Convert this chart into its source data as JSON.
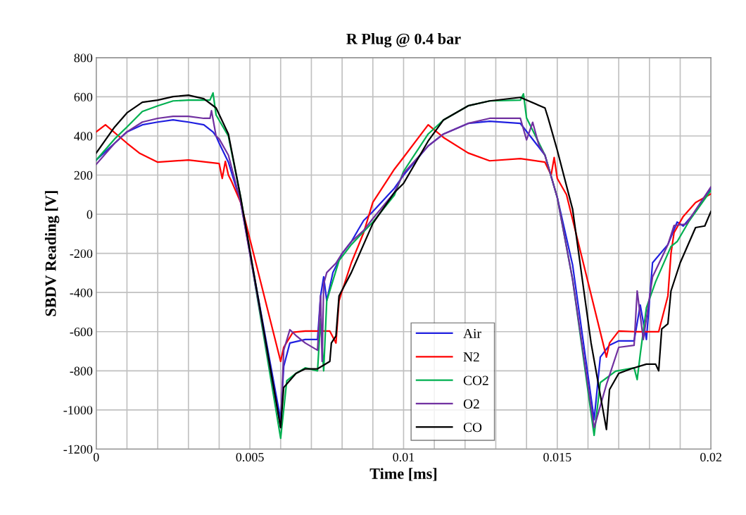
{
  "chart_data": {
    "type": "line",
    "title": "R Plug @ 0.4 bar",
    "xlabel": "Time [ms]",
    "ylabel": "SBDV Reading [V]",
    "xlim": [
      0,
      0.02
    ],
    "ylim": [
      -1200,
      800
    ],
    "xticks": [
      0,
      {
        "value": 0.001,
        "label": null
      },
      {
        "value": 0.002,
        "label": null
      },
      {
        "value": 0.003,
        "label": null
      },
      {
        "value": 0.004,
        "label": null
      },
      0.005,
      {
        "value": 0.006,
        "label": null
      },
      {
        "value": 0.007,
        "label": null
      },
      {
        "value": 0.008,
        "label": null
      },
      {
        "value": 0.009,
        "label": null
      },
      0.01,
      {
        "value": 0.011,
        "label": null
      },
      {
        "value": 0.012,
        "label": null
      },
      {
        "value": 0.013,
        "label": null
      },
      {
        "value": 0.014,
        "label": null
      },
      0.015,
      {
        "value": 0.016,
        "label": null
      },
      {
        "value": 0.017,
        "label": null
      },
      {
        "value": 0.018,
        "label": null
      },
      {
        "value": 0.019,
        "label": null
      },
      0.02
    ],
    "yticks": [
      -1200,
      -1000,
      -800,
      -600,
      -400,
      -200,
      0,
      200,
      400,
      600,
      800
    ],
    "grid": true,
    "legend": "bottom",
    "marker": "none",
    "line_style": "solid",
    "series": [
      {
        "name": "Air",
        "color": "#2020e0",
        "x": [
          0,
          0.0006,
          0.001,
          0.0015,
          0.002,
          0.0025,
          0.003,
          0.0035,
          0.0038,
          0.0039,
          0.004,
          0.0043,
          0.0047,
          0.006,
          0.0061,
          0.0063,
          0.0068,
          0.0072,
          0.0073,
          0.0074,
          0.0075,
          0.0077,
          0.008,
          0.0083,
          0.0087,
          0.009,
          0.0097,
          0.01,
          0.0108,
          0.0113,
          0.0121,
          0.0128,
          0.0138,
          0.0146,
          0.015,
          0.0155,
          0.0162,
          0.0164,
          0.0167,
          0.017,
          0.0175,
          0.0177,
          0.0179,
          0.0181,
          0.0186,
          0.0189,
          0.0191,
          0.0195,
          0.02
        ],
        "values": [
          277,
          363,
          421,
          457,
          471,
          482,
          471,
          457,
          420,
          399,
          363,
          266,
          61,
          -1050,
          -777,
          -658,
          -640,
          -640,
          -417,
          -320,
          -442,
          -298,
          -201,
          -140,
          -32,
          14,
          133,
          200,
          349,
          410,
          464,
          475,
          464,
          302,
          86,
          -260,
          -1050,
          -730,
          -669,
          -647,
          -647,
          -464,
          -640,
          -248,
          -155,
          -40,
          -60,
          14,
          133
        ]
      },
      {
        "name": "N2",
        "color": "#ff0000",
        "x": [
          0,
          0.0003,
          0.001,
          0.0014,
          0.002,
          0.003,
          0.004,
          0.0041,
          0.0042,
          0.0043,
          0.0044,
          0.0047,
          0.006,
          0.0061,
          0.0064,
          0.0068,
          0.0072,
          0.0076,
          0.0078,
          0.0079,
          0.008,
          0.0083,
          0.0087,
          0.009,
          0.0097,
          0.01,
          0.0108,
          0.0113,
          0.0121,
          0.0128,
          0.0138,
          0.0146,
          0.0148,
          0.0149,
          0.015,
          0.0153,
          0.0166,
          0.0167,
          0.017,
          0.0175,
          0.0183,
          0.0186,
          0.0187,
          0.0188,
          0.0191,
          0.0195,
          0.02
        ],
        "values": [
          421,
          457,
          363,
          313,
          266,
          277,
          259,
          183,
          270,
          200,
          169,
          60,
          -752,
          -680,
          -603,
          -597,
          -597,
          -597,
          -658,
          -442,
          -392,
          -248,
          -94,
          61,
          230,
          291,
          457,
          392,
          313,
          273,
          284,
          266,
          200,
          290,
          183,
          100,
          -730,
          -658,
          -597,
          -600,
          -600,
          -417,
          -201,
          -94,
          -11,
          60,
          104
        ]
      },
      {
        "name": "CO2",
        "color": "#00b050",
        "x": [
          0,
          0.0006,
          0.001,
          0.0015,
          0.002,
          0.0025,
          0.003,
          0.0035,
          0.0037,
          0.0038,
          0.0039,
          0.0043,
          0.0047,
          0.006,
          0.0062,
          0.0065,
          0.0068,
          0.0072,
          0.0073,
          0.0074,
          0.0075,
          0.0079,
          0.0083,
          0.009,
          0.0097,
          0.01,
          0.0108,
          0.0113,
          0.0121,
          0.0128,
          0.0138,
          0.0139,
          0.014,
          0.0146,
          0.015,
          0.0155,
          0.0162,
          0.0164,
          0.0169,
          0.0175,
          0.0176,
          0.0177,
          0.0179,
          0.0182,
          0.0187,
          0.0189,
          0.0193,
          0.02
        ],
        "values": [
          277,
          385,
          446,
          525,
          554,
          579,
          583,
          583,
          583,
          620,
          507,
          399,
          86,
          -1145,
          -851,
          -813,
          -785,
          -800,
          -536,
          -800,
          -442,
          -237,
          -155,
          -40,
          97,
          219,
          410,
          482,
          554,
          579,
          583,
          615,
          493,
          302,
          86,
          -335,
          -1130,
          -860,
          -802,
          -785,
          -845,
          -716,
          -478,
          -345,
          -165,
          -140,
          -32,
          122
        ]
      },
      {
        "name": "O2",
        "color": "#7030a0",
        "x": [
          0,
          0.0006,
          0.001,
          0.0015,
          0.002,
          0.0025,
          0.003,
          0.0035,
          0.0037,
          0.00375,
          0.0039,
          0.004,
          0.0043,
          0.0047,
          0.006,
          0.0061,
          0.0063,
          0.0065,
          0.0068,
          0.0072,
          0.0073,
          0.00735,
          0.0074,
          0.0075,
          0.0078,
          0.008,
          0.0083,
          0.0087,
          0.009,
          0.0097,
          0.01,
          0.0108,
          0.0113,
          0.0121,
          0.0128,
          0.0138,
          0.014,
          0.0142,
          0.0144,
          0.0146,
          0.015,
          0.0155,
          0.0162,
          0.0166,
          0.017,
          0.0175,
          0.0176,
          0.0178,
          0.0181,
          0.0186,
          0.0188,
          0.0192,
          0.02
        ],
        "values": [
          255,
          363,
          421,
          471,
          490,
          500,
          500,
          490,
          490,
          529,
          399,
          385,
          302,
          61,
          -1090,
          -695,
          -590,
          -620,
          -658,
          -695,
          -417,
          -752,
          -356,
          -298,
          -250,
          -200,
          -140,
          -83,
          -22,
          111,
          209,
          349,
          410,
          464,
          490,
          490,
          380,
          470,
          354,
          302,
          86,
          -335,
          -1090,
          -870,
          -680,
          -670,
          -392,
          -640,
          -320,
          -155,
          -58,
          -50,
          140
        ]
      },
      {
        "name": "CO",
        "color": "#000000",
        "x": [
          0,
          0.0006,
          0.001,
          0.0015,
          0.002,
          0.0025,
          0.003,
          0.0035,
          0.0039,
          0.0043,
          0.0047,
          0.006,
          0.0061,
          0.0065,
          0.0068,
          0.0072,
          0.0076,
          0.00765,
          0.0078,
          0.0079,
          0.0083,
          0.009,
          0.0097,
          0.01,
          0.0108,
          0.0113,
          0.0121,
          0.0128,
          0.0138,
          0.0146,
          0.0147,
          0.015,
          0.0155,
          0.0161,
          0.0166,
          0.0167,
          0.017,
          0.0174,
          0.0179,
          0.0182,
          0.0183,
          0.0184,
          0.0186,
          0.0187,
          0.019,
          0.0195,
          0.0198,
          0.02
        ],
        "values": [
          313,
          446,
          518,
          572,
          583,
          601,
          608,
          590,
          543,
          410,
          86,
          -1090,
          -885,
          -813,
          -790,
          -790,
          -752,
          -658,
          -622,
          -417,
          -298,
          -47,
          111,
          158,
          374,
          482,
          554,
          579,
          597,
          543,
          493,
          327,
          25,
          -658,
          -1100,
          -896,
          -813,
          -790,
          -766,
          -766,
          -800,
          -586,
          -560,
          -392,
          -248,
          -68,
          -60,
          14
        ]
      }
    ]
  }
}
